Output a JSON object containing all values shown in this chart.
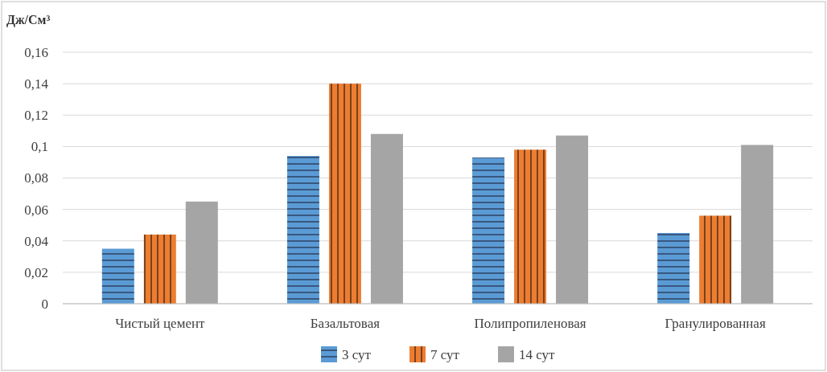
{
  "chart_data": {
    "type": "bar",
    "ylabel": "Дж/См³",
    "categories": [
      "Чистый цемент",
      "Базальтовая",
      "Полипропиленовая",
      "Гранулированная"
    ],
    "series": [
      {
        "name": "3 сут",
        "color": "#5b9bd5",
        "values": [
          0.035,
          0.094,
          0.093,
          0.045
        ]
      },
      {
        "name": "7 сут",
        "color": "#ed7d31",
        "values": [
          0.044,
          0.14,
          0.098,
          0.056
        ]
      },
      {
        "name": "14 сут",
        "color": "#a5a5a5",
        "values": [
          0.065,
          0.108,
          0.107,
          0.101
        ]
      }
    ],
    "ylim": [
      0,
      0.16
    ],
    "yticks": [
      0,
      {
        "value": 0.02,
        "label": "0,02"
      },
      {
        "value": 0.04,
        "label": "0,04"
      },
      {
        "value": 0.06,
        "label": "0,06"
      },
      {
        "value": 0.08,
        "label": "0,08"
      },
      {
        "value": 0.1,
        "label": "0,1"
      },
      {
        "value": 0.12,
        "label": "0,12"
      },
      {
        "value": 0.14,
        "label": "0,14"
      },
      {
        "value": 0.16,
        "label": "0,16"
      }
    ],
    "grid": "y",
    "legend": "bottom"
  }
}
